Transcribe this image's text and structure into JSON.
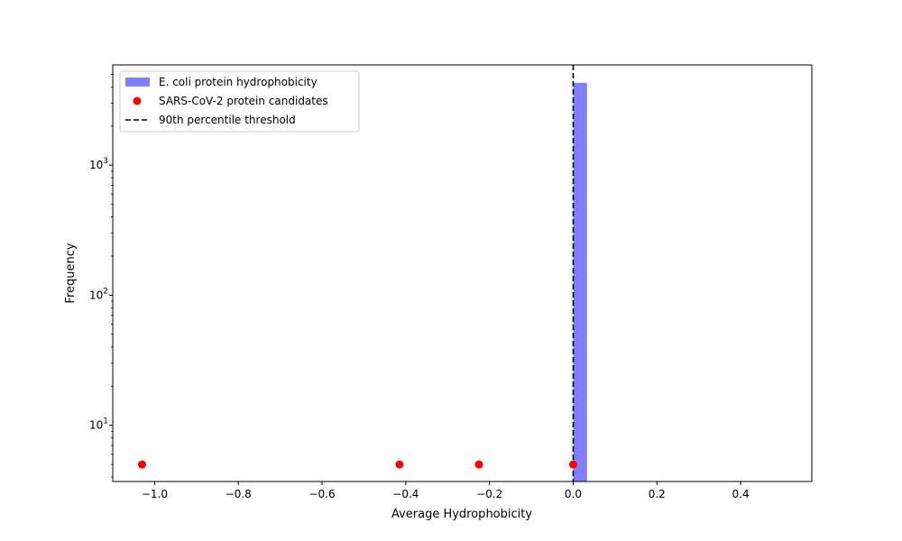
{
  "chart_data": {
    "type": "bar",
    "title": "",
    "xlabel": "Average Hydrophobicity",
    "ylabel": "Frequency",
    "x_scale": "linear",
    "y_scale": "log",
    "xlim": [
      -1.1,
      0.57
    ],
    "ylim": [
      3.7,
      5900
    ],
    "x_ticks": [
      -1.0,
      -0.8,
      -0.6,
      -0.4,
      -0.2,
      0.0,
      0.2,
      0.4
    ],
    "x_tick_labels": [
      "−1.0",
      "−0.8",
      "−0.6",
      "−0.4",
      "−0.2",
      "0.0",
      "0.2",
      "0.4"
    ],
    "y_ticks": [
      10,
      100,
      1000
    ],
    "y_tick_labels": [
      {
        "base": "10",
        "exp": "1"
      },
      {
        "base": "10",
        "exp": "2"
      },
      {
        "base": "10",
        "exp": "3"
      }
    ],
    "grid": false,
    "legend_position": "upper-left",
    "series": [
      {
        "name": "E. coli protein hydrophobicity",
        "kind": "histogram",
        "color": "#8080ff",
        "bins": [
          {
            "x0": 0.0,
            "x1": 0.033,
            "count": 4300
          }
        ]
      },
      {
        "name": "SARS-CoV-2 protein candidates",
        "kind": "scatter",
        "color": "#ff0000",
        "points": [
          {
            "x": -1.03,
            "y": 5
          },
          {
            "x": -0.415,
            "y": 5
          },
          {
            "x": -0.225,
            "y": 5
          },
          {
            "x": 0.0,
            "y": 5
          }
        ]
      },
      {
        "name": "90th percentile threshold",
        "kind": "vline",
        "color": "#000000",
        "x": 0.0
      }
    ]
  }
}
